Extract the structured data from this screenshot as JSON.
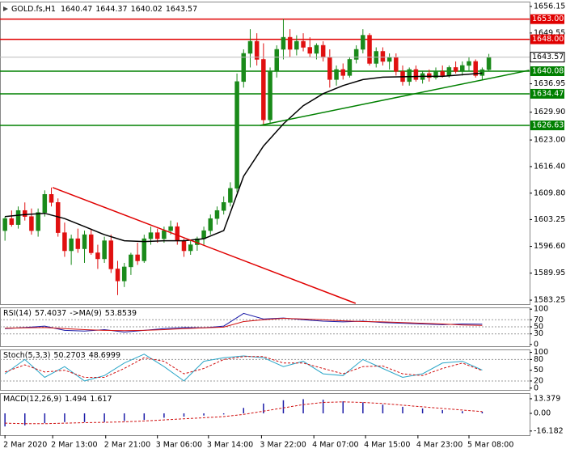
{
  "chart_data": {
    "type": "candlestick",
    "symbol": "GOLD.fs,H1",
    "candles": {
      "open": [
        1600.5,
        1603.5,
        1602.0,
        1605.5,
        1604.0,
        1600.5,
        1605.0,
        1609.5,
        1607.5,
        1600.0,
        1595.5,
        1598.5,
        1596.0,
        1599.5,
        1595.0,
        1593.5,
        1598.0,
        1591.0,
        1588.0,
        1591.5,
        1594.5,
        1593.0,
        1598.5,
        1600.0,
        1598.5,
        1600.5,
        1601.5,
        1598.0,
        1595.5,
        1597.0,
        1598.5,
        1600.5,
        1603.5,
        1605.5,
        1607.5,
        1611.0,
        1637.5,
        1644.5,
        1647.5,
        1643.0,
        1628.0,
        1640.0,
        1645.5,
        1648.5,
        1645.5,
        1647.5,
        1646.0,
        1644.5,
        1646.5,
        1643.5,
        1638.0,
        1640.5,
        1639.0,
        1643.0,
        1645.5,
        1649.0,
        1642.0,
        1645.0,
        1642.5,
        1643.5,
        1640.0,
        1637.5,
        1640.5,
        1638.0,
        1639.5,
        1638.5,
        1640.0,
        1639.0,
        1641.0,
        1640.0,
        1641.5,
        1642.5,
        1639.0,
        1640.47
      ],
      "high": [
        1604.0,
        1605.5,
        1606.5,
        1607.5,
        1606.0,
        1606.0,
        1610.5,
        1611.2,
        1608.5,
        1602.5,
        1599.5,
        1601.0,
        1600.5,
        1601.0,
        1597.0,
        1599.0,
        1599.5,
        1593.0,
        1592.5,
        1595.0,
        1597.5,
        1599.5,
        1601.5,
        1601.0,
        1601.5,
        1603.0,
        1602.5,
        1598.5,
        1598.0,
        1599.0,
        1601.5,
        1604.5,
        1606.5,
        1609.0,
        1612.5,
        1639.5,
        1645.5,
        1650.5,
        1649.5,
        1647.0,
        1641.0,
        1646.5,
        1653.0,
        1650.5,
        1649.0,
        1649.5,
        1648.5,
        1647.0,
        1647.5,
        1645.5,
        1641.5,
        1642.0,
        1643.5,
        1646.5,
        1650.5,
        1649.5,
        1646.0,
        1646.0,
        1644.5,
        1644.5,
        1641.5,
        1641.0,
        1641.5,
        1640.0,
        1640.5,
        1641.0,
        1641.5,
        1641.5,
        1642.5,
        1642.5,
        1643.5,
        1643.0,
        1641.0,
        1644.37
      ],
      "low": [
        1598.0,
        1601.5,
        1601.0,
        1603.0,
        1599.5,
        1599.0,
        1604.0,
        1606.5,
        1599.0,
        1594.0,
        1592.0,
        1595.0,
        1592.5,
        1594.5,
        1591.0,
        1592.5,
        1590.0,
        1584.5,
        1586.5,
        1589.5,
        1592.0,
        1592.5,
        1597.0,
        1597.5,
        1597.5,
        1599.5,
        1597.0,
        1594.0,
        1594.5,
        1595.5,
        1597.0,
        1599.5,
        1602.0,
        1604.5,
        1606.5,
        1610.0,
        1636.0,
        1641.0,
        1641.5,
        1626.6,
        1627.0,
        1638.5,
        1643.0,
        1643.5,
        1644.0,
        1645.0,
        1643.5,
        1643.0,
        1642.5,
        1636.0,
        1636.5,
        1638.0,
        1638.5,
        1642.0,
        1644.5,
        1641.5,
        1641.0,
        1641.5,
        1640.5,
        1639.0,
        1636.5,
        1636.5,
        1637.5,
        1637.0,
        1637.5,
        1638.0,
        1638.5,
        1638.5,
        1639.5,
        1639.0,
        1640.0,
        1638.5,
        1638.0,
        1640.02
      ],
      "close": [
        1603.5,
        1602.0,
        1605.5,
        1604.0,
        1600.5,
        1605.0,
        1609.5,
        1607.5,
        1600.0,
        1595.5,
        1598.5,
        1596.0,
        1599.5,
        1595.0,
        1593.5,
        1598.0,
        1591.0,
        1588.0,
        1591.5,
        1594.5,
        1593.0,
        1598.5,
        1600.0,
        1598.5,
        1600.5,
        1601.5,
        1598.0,
        1595.5,
        1597.0,
        1598.5,
        1600.5,
        1603.5,
        1605.5,
        1607.5,
        1611.0,
        1637.5,
        1644.5,
        1647.5,
        1643.0,
        1628.0,
        1640.0,
        1645.5,
        1648.5,
        1645.5,
        1647.5,
        1646.0,
        1644.5,
        1646.5,
        1643.5,
        1638.0,
        1640.5,
        1639.0,
        1643.0,
        1645.5,
        1649.0,
        1642.0,
        1645.0,
        1642.5,
        1643.5,
        1640.0,
        1637.5,
        1640.5,
        1638.0,
        1639.5,
        1638.5,
        1640.0,
        1639.0,
        1641.0,
        1640.0,
        1641.5,
        1642.5,
        1639.0,
        1640.47,
        1643.57
      ],
      "up_color": "#1a8a1a",
      "down_color": "#e01010"
    },
    "xlim": [
      -0.75,
      79.15
    ],
    "xticks": [
      {
        "value": 0,
        "label": "2 Mar 2020"
      },
      {
        "value": 7.2,
        "label": "2 Mar 13:00"
      },
      {
        "value": 15.2,
        "label": "2 Mar 21:00"
      },
      {
        "value": 23,
        "label": "3 Mar 06:00"
      },
      {
        "value": 30.7,
        "label": "3 Mar 14:00"
      },
      {
        "value": 38.7,
        "label": "3 Mar 22:00"
      },
      {
        "value": 46.6,
        "label": "4 Mar 07:00"
      },
      {
        "value": 54.4,
        "label": "4 Mar 15:00"
      },
      {
        "value": 62.3,
        "label": "4 Mar 23:00"
      },
      {
        "value": 70,
        "label": "5 Mar 08:00"
      }
    ],
    "ylim": [
      1582.25,
      1657.35
    ],
    "yticks": [
      1656.15,
      1649.55,
      1636.95,
      {
        "value": 1629.9,
        "label": "1629.90"
      },
      {
        "value": 1623,
        "label": "1623.00"
      },
      {
        "value": 1616.4,
        "label": "1616.40"
      },
      {
        "value": 1609.8,
        "label": "1609.80"
      },
      1603.25,
      {
        "value": 1596.6,
        "label": "1596.60"
      },
      1589.95,
      1583.25
    ],
    "moving_average": {
      "x": [
        0,
        3,
        6,
        9,
        12,
        15,
        18,
        21,
        24,
        27,
        30,
        33,
        36,
        39,
        42,
        45,
        48,
        51,
        54,
        57,
        60,
        63,
        66,
        69,
        72
      ],
      "values": [
        1604.0,
        1604.5,
        1604.8,
        1603.5,
        1601.5,
        1599.5,
        1598.0,
        1597.8,
        1598.0,
        1598.0,
        1598.5,
        1600.5,
        1614.0,
        1621.5,
        1627.0,
        1631.5,
        1634.5,
        1636.5,
        1638.0,
        1638.6,
        1638.7,
        1638.8,
        1638.8,
        1639.2,
        1639.6
      ],
      "color": "#000000"
    },
    "levels": [
      {
        "value": 1653,
        "label": "1653.00",
        "color": "#e00000"
      },
      {
        "value": 1648,
        "label": "1648.00",
        "color": "#e00000"
      },
      {
        "value": 1640.08,
        "color": "#008000"
      },
      {
        "value": 1634.47,
        "color": "#008000"
      },
      {
        "value": 1626.63,
        "color": "#008000"
      }
    ],
    "trendlines": [
      {
        "x": [
          7.2,
          52.9
        ],
        "y": [
          1611.2,
          1582.45
        ],
        "color": "#e00000"
      },
      {
        "x": [
          38.5,
          79.1
        ],
        "y": [
          1626.63,
          1640.3
        ],
        "color": "#008000"
      }
    ],
    "indicators": [
      {
        "title": "RSI(14)",
        "ylim": [
          -5,
          105
        ],
        "yticks": [
          100,
          70,
          50,
          30,
          0
        ],
        "levels": [
          70,
          50,
          30
        ],
        "x": [
          0,
          3,
          6,
          9,
          12,
          15,
          18,
          21,
          24,
          27,
          30,
          33,
          36,
          39,
          42,
          45,
          48,
          51,
          54,
          57,
          60,
          63,
          66,
          69,
          72
        ],
        "series": [
          {
            "type": "line",
            "color": "#1c1ca8",
            "values": [
              45,
              48,
              52,
              40,
              38,
              42,
              35,
              40,
              45,
              48,
              47,
              52,
              88,
              72,
              75,
              70,
              66,
              64,
              66,
              62,
              60,
              58,
              56,
              58,
              57.4037
            ]
          },
          {
            "name": "->MA(9)",
            "type": "line",
            "color": "#d01010",
            "values": [
              46,
              47,
              48,
              45,
              42,
              40,
              39,
              40,
              42,
              45,
              47,
              49,
              65,
              70,
              74,
              72,
              70,
              67,
              65,
              64,
              62,
              60,
              58,
              55,
              53.8539
            ]
          }
        ]
      },
      {
        "title": "Stoch(5,3,3)",
        "ylim": [
          -5,
          108
        ],
        "yticks": [
          100,
          80,
          50,
          20,
          0
        ],
        "levels": [
          80,
          20
        ],
        "x": [
          0,
          3,
          6,
          9,
          12,
          15,
          18,
          21,
          24,
          27,
          30,
          33,
          36,
          39,
          42,
          45,
          48,
          51,
          54,
          57,
          60,
          63,
          66,
          69,
          72
        ],
        "series": [
          {
            "type": "line",
            "color": "#2aa6c8",
            "values": [
              40,
              80,
              30,
              60,
              20,
              35,
              70,
              95,
              60,
              20,
              75,
              85,
              90,
              85,
              60,
              75,
              40,
              35,
              80,
              55,
              30,
              40,
              70,
              75,
              50.2703
            ]
          },
          {
            "type": "line",
            "color": "#d01010",
            "dash": true,
            "values": [
              45,
              65,
              45,
              50,
              30,
              30,
              55,
              85,
              75,
              40,
              55,
              80,
              88,
              88,
              70,
              70,
              55,
              40,
              60,
              62,
              40,
              35,
              55,
              70,
              48.6999
            ]
          }
        ]
      },
      {
        "title": "MACD(12,26,9)",
        "ylim": [
          -20,
          18.5
        ],
        "yticks": [
          13.379,
          {
            "value": 0,
            "label": "0.00"
          },
          -16.182
        ],
        "levels": [],
        "x": [
          0,
          3,
          6,
          9,
          12,
          15,
          18,
          21,
          24,
          27,
          30,
          33,
          36,
          39,
          42,
          45,
          48,
          51,
          54,
          57,
          60,
          63,
          66,
          69,
          72
        ],
        "series": [
          {
            "type": "bar",
            "color": "#1c1ca8",
            "values": [
              -12,
              -11,
              -9,
              -8,
              -8,
              -8,
              -7,
              -6,
              -4,
              -3,
              -2,
              -1,
              5,
              9,
              12,
              13,
              12.5,
              11,
              10,
              8,
              6,
              4.5,
              3,
              2,
              1.494
            ]
          },
          {
            "type": "line",
            "color": "#d01010",
            "dash": true,
            "values": [
              -9,
              -9.5,
              -9.5,
              -9,
              -8.5,
              -8.2,
              -7.8,
              -7,
              -6,
              -5,
              -4,
              -3,
              -1,
              2,
              5,
              8,
              10,
              10.5,
              10,
              9,
              7.5,
              6,
              4.5,
              3,
              1.617
            ]
          }
        ]
      }
    ]
  }
}
